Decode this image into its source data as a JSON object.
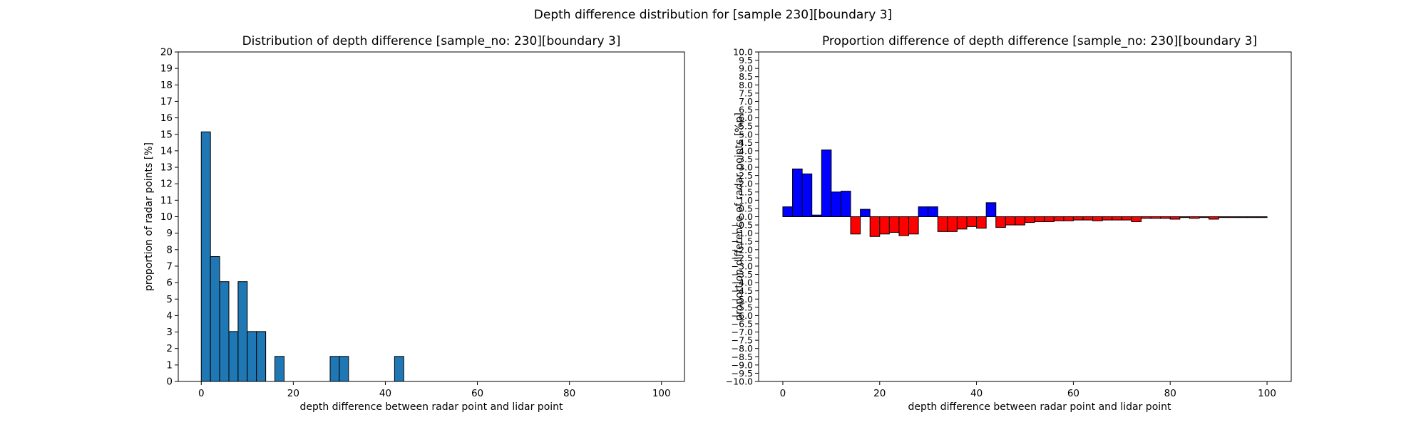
{
  "figure": {
    "suptitle": "Depth difference distribution for [sample 230][boundary 3]"
  },
  "chart_data": [
    {
      "type": "bar",
      "title": "Distribution of depth difference [sample_no: 230][boundary 3]",
      "xlabel": "depth difference between radar point and lidar point",
      "ylabel": "proportion of radar points [%]",
      "xlim": [
        -5,
        105
      ],
      "ylim": [
        0,
        20
      ],
      "xticks": [
        0,
        20,
        40,
        60,
        80,
        100
      ],
      "yticks": [
        0,
        1,
        2,
        3,
        4,
        5,
        6,
        7,
        8,
        9,
        10,
        11,
        12,
        13,
        14,
        15,
        16,
        17,
        18,
        19,
        20
      ],
      "bin_width": 2,
      "bar_color": "#1f77b4",
      "edge_color": "#000000",
      "grid": false,
      "bins": [
        {
          "x": 0,
          "value": 15.15
        },
        {
          "x": 2,
          "value": 7.58
        },
        {
          "x": 4,
          "value": 6.06
        },
        {
          "x": 6,
          "value": 3.03
        },
        {
          "x": 8,
          "value": 6.06
        },
        {
          "x": 10,
          "value": 3.03
        },
        {
          "x": 12,
          "value": 3.03
        },
        {
          "x": 16,
          "value": 1.52
        },
        {
          "x": 28,
          "value": 1.52
        },
        {
          "x": 30,
          "value": 1.52
        },
        {
          "x": 42,
          "value": 1.52
        }
      ]
    },
    {
      "type": "bar",
      "title": "Proportion difference of depth difference [sample_no: 230][boundary 3]",
      "xlabel": "depth difference between radar point and lidar point",
      "ylabel": "proportion difference of radar points [%p]",
      "xlim": [
        -5,
        105
      ],
      "ylim": [
        -10,
        10
      ],
      "xticks": [
        0,
        20,
        40,
        60,
        80,
        100
      ],
      "ytick_step": 0.5,
      "bin_width": 2,
      "positive_color": "#0000ff",
      "negative_color": "#ff0000",
      "edge_color": "#000000",
      "grid": false,
      "bins": [
        {
          "x": 0,
          "value": 0.6
        },
        {
          "x": 2,
          "value": 2.9
        },
        {
          "x": 4,
          "value": 2.6
        },
        {
          "x": 6,
          "value": 0.1
        },
        {
          "x": 8,
          "value": 4.05
        },
        {
          "x": 10,
          "value": 1.5
        },
        {
          "x": 12,
          "value": 1.55
        },
        {
          "x": 14,
          "value": -1.05
        },
        {
          "x": 16,
          "value": 0.45
        },
        {
          "x": 18,
          "value": -1.2
        },
        {
          "x": 20,
          "value": -1.05
        },
        {
          "x": 22,
          "value": -0.95
        },
        {
          "x": 24,
          "value": -1.15
        },
        {
          "x": 26,
          "value": -1.05
        },
        {
          "x": 28,
          "value": 0.6
        },
        {
          "x": 30,
          "value": 0.6
        },
        {
          "x": 32,
          "value": -0.9
        },
        {
          "x": 34,
          "value": -0.9
        },
        {
          "x": 36,
          "value": -0.75
        },
        {
          "x": 38,
          "value": -0.6
        },
        {
          "x": 40,
          "value": -0.7
        },
        {
          "x": 42,
          "value": 0.85
        },
        {
          "x": 44,
          "value": -0.65
        },
        {
          "x": 46,
          "value": -0.5
        },
        {
          "x": 48,
          "value": -0.5
        },
        {
          "x": 50,
          "value": -0.35
        },
        {
          "x": 52,
          "value": -0.3
        },
        {
          "x": 54,
          "value": -0.3
        },
        {
          "x": 56,
          "value": -0.25
        },
        {
          "x": 58,
          "value": -0.25
        },
        {
          "x": 60,
          "value": -0.2
        },
        {
          "x": 62,
          "value": -0.2
        },
        {
          "x": 64,
          "value": -0.25
        },
        {
          "x": 66,
          "value": -0.2
        },
        {
          "x": 68,
          "value": -0.2
        },
        {
          "x": 70,
          "value": -0.2
        },
        {
          "x": 72,
          "value": -0.3
        },
        {
          "x": 74,
          "value": -0.1
        },
        {
          "x": 76,
          "value": -0.1
        },
        {
          "x": 78,
          "value": -0.1
        },
        {
          "x": 80,
          "value": -0.15
        },
        {
          "x": 82,
          "value": -0.05
        },
        {
          "x": 84,
          "value": -0.1
        },
        {
          "x": 86,
          "value": -0.05
        },
        {
          "x": 88,
          "value": -0.15
        },
        {
          "x": 90,
          "value": -0.05
        },
        {
          "x": 92,
          "value": -0.05
        },
        {
          "x": 94,
          "value": -0.05
        },
        {
          "x": 96,
          "value": -0.05
        },
        {
          "x": 98,
          "value": -0.05
        }
      ]
    }
  ]
}
